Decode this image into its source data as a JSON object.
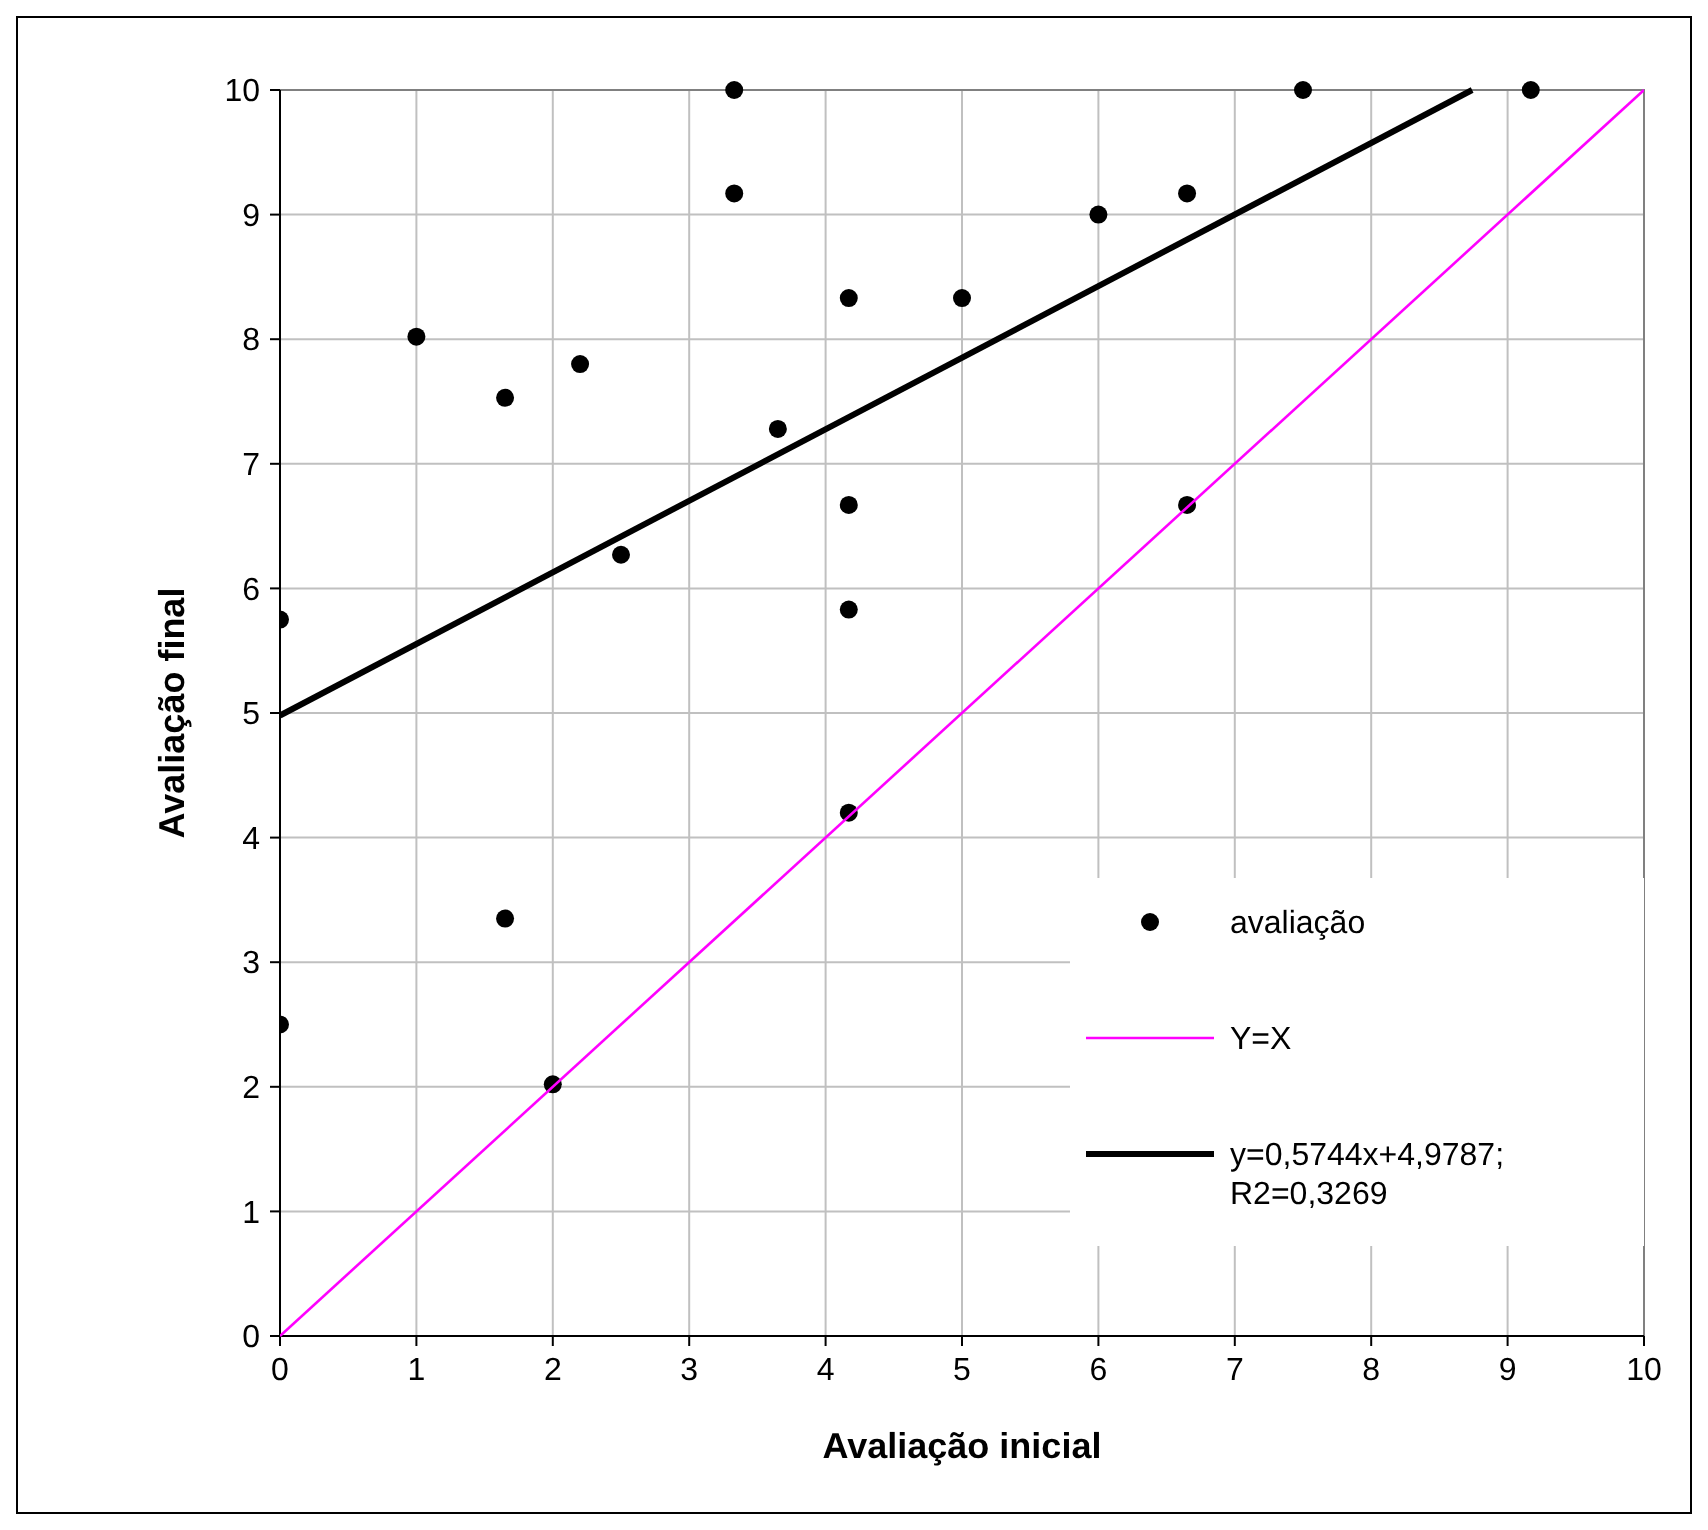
{
  "chart_data": {
    "type": "scatter",
    "xlabel": "Avaliação inicial",
    "ylabel": "Avaliação final",
    "xlim": [
      0,
      10
    ],
    "ylim": [
      0,
      10
    ],
    "xticks": [
      0,
      1,
      2,
      3,
      4,
      5,
      6,
      7,
      8,
      9,
      10
    ],
    "yticks": [
      0,
      1,
      2,
      3,
      4,
      5,
      6,
      7,
      8,
      9,
      10
    ],
    "grid": true,
    "legend": "bottom right",
    "series": [
      {
        "name": "avaliação",
        "color": "#000000",
        "marker": "circle",
        "x": [
          0,
          0,
          1,
          1.65,
          1.65,
          2,
          2.2,
          2.5,
          3.33,
          3.33,
          3.65,
          4.17,
          4.17,
          4.17,
          4.17,
          5,
          6,
          6.65,
          6.65,
          7.5,
          9.17
        ],
        "values": [
          5.75,
          2.5,
          8.02,
          7.53,
          3.35,
          2.02,
          7.8,
          6.27,
          10,
          9.17,
          7.28,
          8.33,
          6.67,
          5.83,
          4.2,
          8.33,
          9,
          9.17,
          6.67,
          10,
          10
        ]
      },
      {
        "name": "Y=X",
        "type": "line",
        "color": "#ff00ff",
        "marker": "none",
        "x": [
          0,
          10
        ],
        "values": [
          0,
          10
        ]
      },
      {
        "name": "y=0,5744x+4,9787; R2=0,3269",
        "type": "line",
        "color": "#000000",
        "marker": "none",
        "x": [
          0,
          8.74
        ],
        "values": [
          4.98,
          10
        ]
      }
    ]
  }
}
